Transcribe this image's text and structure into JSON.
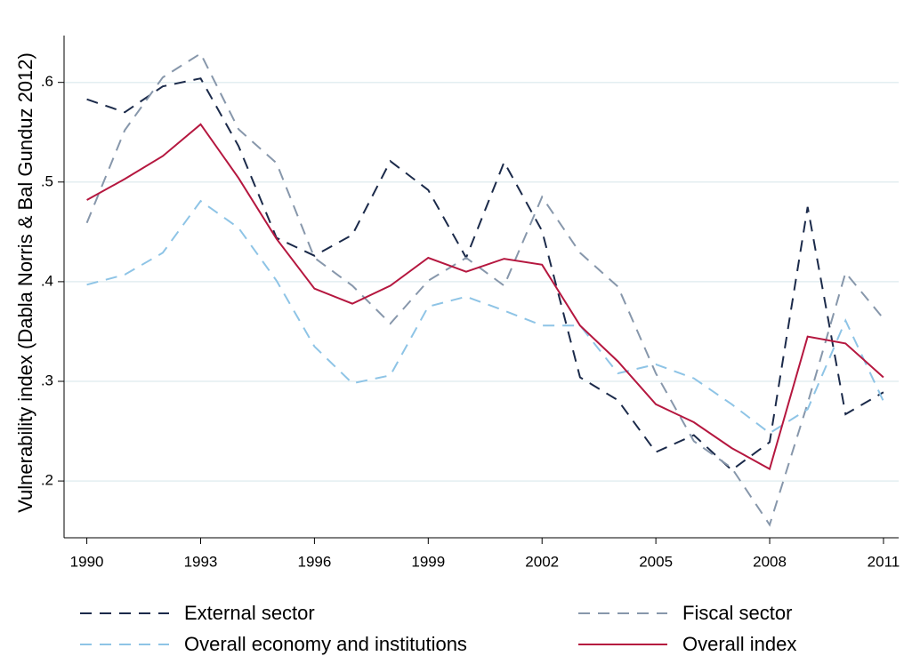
{
  "chart_data": {
    "type": "line",
    "y_label": "Vulnerability index (Dabla Norris & Bal Gunduz 2012)",
    "x": [
      1990,
      1991,
      1992,
      1993,
      1994,
      1995,
      1996,
      1997,
      1998,
      1999,
      2000,
      2001,
      2002,
      2003,
      2004,
      2005,
      2006,
      2007,
      2008,
      2009,
      2010,
      2011
    ],
    "xlim": [
      1989.4,
      2011.4
    ],
    "xticks": [
      1990,
      1993,
      1996,
      1999,
      2002,
      2005,
      2008,
      2011
    ],
    "ylim": [
      0.143,
      0.647
    ],
    "yticks": [
      {
        "value": 0.2,
        "label": ".2"
      },
      {
        "value": 0.3,
        "label": ".3"
      },
      {
        "value": 0.4,
        "label": ".4"
      },
      {
        "value": 0.5,
        "label": ".5"
      },
      {
        "value": 0.6,
        "label": ".6"
      }
    ],
    "grid": true,
    "series": [
      {
        "name": "External sector",
        "color": "#1b2a4a",
        "style": "dashed",
        "values": [
          0.583,
          0.57,
          0.596,
          0.604,
          0.536,
          0.444,
          0.426,
          0.447,
          0.521,
          0.492,
          0.424,
          0.52,
          0.451,
          0.304,
          0.281,
          0.229,
          0.246,
          0.211,
          0.239,
          0.475,
          0.267,
          0.289
        ]
      },
      {
        "name": "Fiscal sector",
        "color": "#8797ab",
        "style": "dashed",
        "values": [
          0.459,
          0.552,
          0.605,
          0.629,
          0.553,
          0.519,
          0.424,
          0.396,
          0.358,
          0.401,
          0.424,
          0.396,
          0.485,
          0.429,
          0.395,
          0.308,
          0.24,
          0.213,
          0.156,
          0.278,
          0.409,
          0.363
        ]
      },
      {
        "name": "Overall economy and institutions",
        "color": "#8ec4e6",
        "style": "dashed",
        "values": [
          0.397,
          0.407,
          0.429,
          0.481,
          0.454,
          0.401,
          0.335,
          0.298,
          0.306,
          0.375,
          0.385,
          0.371,
          0.356,
          0.356,
          0.308,
          0.317,
          0.303,
          0.277,
          0.248,
          0.272,
          0.361,
          0.28
        ]
      },
      {
        "name": "Overall index",
        "color": "#b5173f",
        "style": "solid",
        "values": [
          0.482,
          0.503,
          0.526,
          0.558,
          0.504,
          0.443,
          0.393,
          0.378,
          0.396,
          0.424,
          0.41,
          0.423,
          0.417,
          0.356,
          0.32,
          0.277,
          0.259,
          0.233,
          0.212,
          0.345,
          0.338,
          0.304
        ]
      }
    ]
  }
}
